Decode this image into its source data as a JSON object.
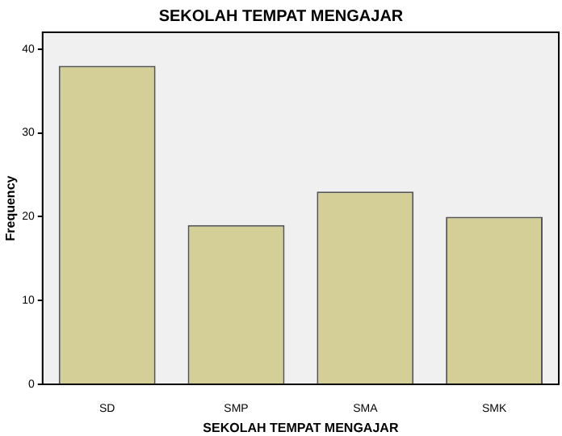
{
  "chart_data": {
    "type": "bar",
    "title": "SEKOLAH TEMPAT MENGAJAR",
    "xlabel": "SEKOLAH TEMPAT MENGAJAR",
    "ylabel": "Frequency",
    "categories": [
      "SD",
      "SMP",
      "SMA",
      "SMK"
    ],
    "values": [
      38,
      19,
      23,
      20
    ],
    "color": "#d3cf96",
    "ylim": [
      0,
      42
    ],
    "yticks": [
      0,
      10,
      20,
      30,
      40
    ],
    "grid": false,
    "legend": false
  }
}
